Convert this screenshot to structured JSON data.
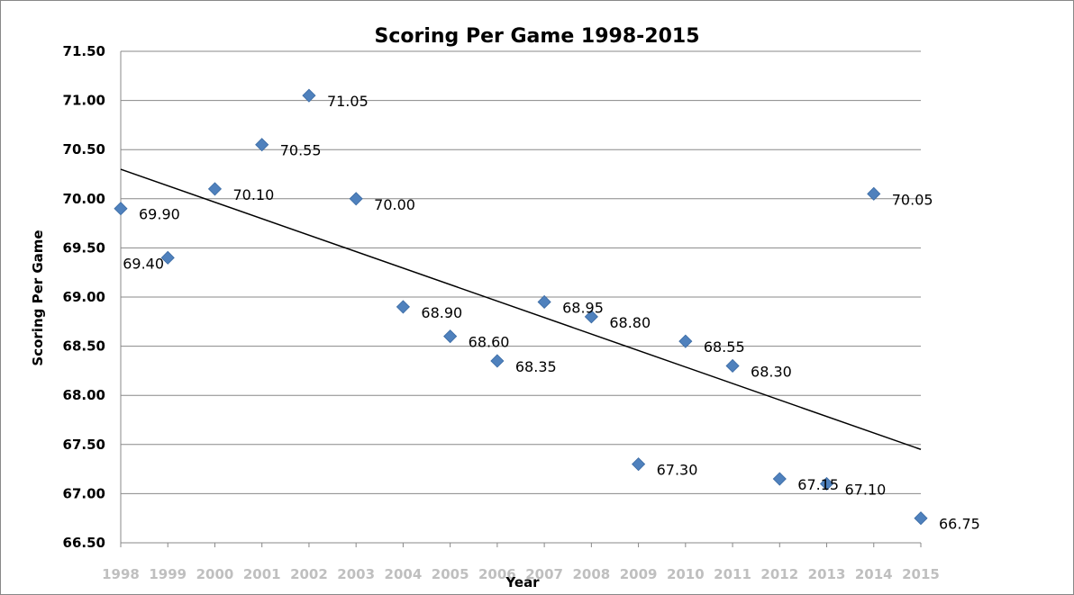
{
  "chart_data": {
    "type": "scatter",
    "title": "Scoring Per Game 1998-2015",
    "xlabel": "Year",
    "ylabel": "Scoring Per Game",
    "ylim": [
      66.5,
      71.5
    ],
    "y_ticks": [
      "66.50",
      "67.00",
      "67.50",
      "68.00",
      "68.50",
      "69.00",
      "69.50",
      "70.00",
      "70.50",
      "71.00",
      "71.50"
    ],
    "x": [
      "1998",
      "1999",
      "2000",
      "2001",
      "2002",
      "2003",
      "2004",
      "2005",
      "2006",
      "2007",
      "2008",
      "2009",
      "2010",
      "2011",
      "2012",
      "2013",
      "2014",
      "2015"
    ],
    "values": [
      69.9,
      69.4,
      70.1,
      70.55,
      71.05,
      70.0,
      68.9,
      68.6,
      68.35,
      68.95,
      68.8,
      67.3,
      68.55,
      68.3,
      67.15,
      67.1,
      70.05,
      66.75
    ],
    "data_labels": [
      "69.90",
      "69.40",
      "70.10",
      "70.55",
      "71.05",
      "70.00",
      "68.90",
      "68.60",
      "68.35",
      "68.95",
      "68.80",
      "67.30",
      "68.55",
      "68.30",
      "67.15",
      "67.10",
      "70.05",
      "66.75"
    ],
    "trendline": {
      "type": "linear",
      "start": 70.3,
      "end": 67.45
    },
    "grid": true,
    "legend": "none",
    "colors": {
      "marker": "#4f81bd",
      "marker_stroke": "#3a6aa3",
      "trendline": "#000000",
      "grid": "#888888",
      "x_tick_labels": "#bfbfbf"
    }
  }
}
